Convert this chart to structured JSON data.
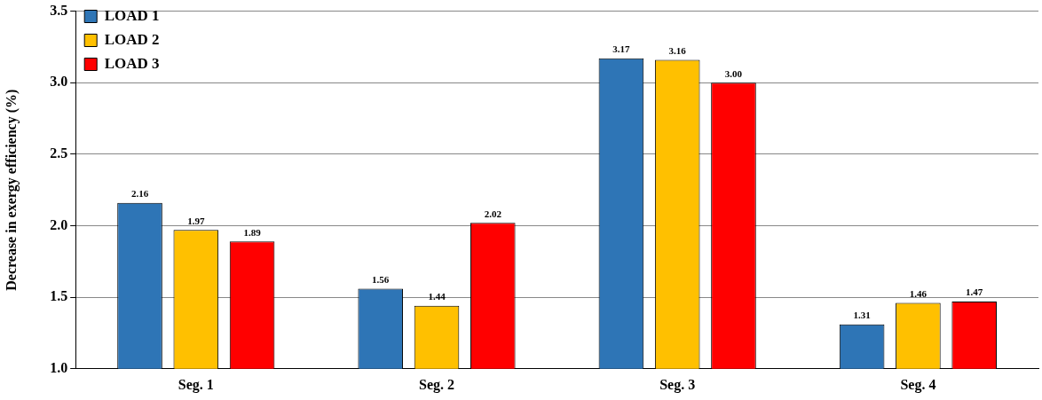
{
  "chart_data": {
    "type": "bar",
    "ylabel": "Decrease in exergy efficiency (%)",
    "categories": [
      "Seg. 1",
      "Seg. 2",
      "Seg. 3",
      "Seg. 4"
    ],
    "series": [
      {
        "name": "LOAD 1",
        "color": "#2e75b6",
        "values": [
          2.16,
          1.56,
          3.17,
          1.31
        ],
        "value_labels": [
          "2.16",
          "1.56",
          "3.17",
          "1.31"
        ]
      },
      {
        "name": "LOAD 2",
        "color": "#ffc000",
        "values": [
          1.97,
          1.44,
          3.16,
          1.46
        ],
        "value_labels": [
          "1.97",
          "1.44",
          "3.16",
          "1.46"
        ]
      },
      {
        "name": "LOAD 3",
        "color": "#ff0000",
        "values": [
          1.89,
          2.02,
          3.0,
          1.47
        ],
        "value_labels": [
          "1.89",
          "2.02",
          "3.00",
          "1.47"
        ]
      }
    ],
    "ylim": [
      1.0,
      3.5
    ],
    "yticks": [
      {
        "value": 1.0,
        "label": "1.0"
      },
      {
        "value": 1.5,
        "label": "1.5"
      },
      {
        "value": 2.0,
        "label": "2.0"
      },
      {
        "value": 2.5,
        "label": "2.5"
      },
      {
        "value": 3.0,
        "label": "3.0"
      },
      {
        "value": 3.5,
        "label": "3.5"
      }
    ],
    "grid": "y",
    "legend": "top left"
  }
}
